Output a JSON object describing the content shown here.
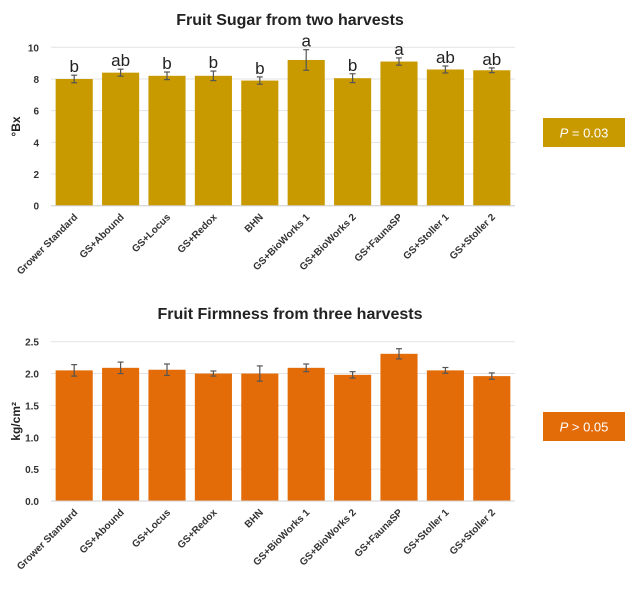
{
  "chart_data": [
    {
      "type": "bar",
      "title": "Fruit Sugar from two harvests",
      "xlabel": "",
      "ylabel": "°Bx",
      "ylim": [
        0,
        10
      ],
      "yticks": [
        0,
        2,
        4,
        6,
        8,
        10
      ],
      "grid": true,
      "color": "#c99a00",
      "categories": [
        "Grower Standard",
        "GS+Abound",
        "GS+Locus",
        "GS+Redox",
        "BHN",
        "GS+BioWorks 1",
        "GS+BioWorks 2",
        "GS+FaunaSP",
        "GS+Stoller 1",
        "GS+Stoller 2"
      ],
      "values": [
        8.0,
        8.4,
        8.2,
        8.2,
        7.9,
        9.2,
        8.05,
        9.1,
        8.6,
        8.55
      ],
      "errors": [
        0.24,
        0.22,
        0.24,
        0.3,
        0.23,
        0.65,
        0.28,
        0.23,
        0.22,
        0.15
      ],
      "data_labels": [
        "b",
        "ab",
        "b",
        "b",
        "b",
        "a",
        "b",
        "a",
        "ab",
        "ab"
      ],
      "annotation": {
        "p_label": "P",
        "p_text": " = 0.03"
      }
    },
    {
      "type": "bar",
      "title": "Fruit Firmness from three harvests",
      "xlabel": "",
      "ylabel": "kg/cm²",
      "ylim": [
        0,
        2.5
      ],
      "yticks": [
        "0.0",
        "0.5",
        "1.0",
        "1.5",
        "2.0",
        "2.5"
      ],
      "grid": true,
      "color": "#e36c09",
      "categories": [
        "Grower Standard",
        "GS+Abound",
        "GS+Locus",
        "GS+Redox",
        "BHN",
        "GS+BioWorks 1",
        "GS+BioWorks 2",
        "GS+FaunaSP",
        "GS+Stoller 1",
        "GS+Stoller 2"
      ],
      "values": [
        2.05,
        2.09,
        2.06,
        2.0,
        2.0,
        2.09,
        1.98,
        2.31,
        2.05,
        1.96
      ],
      "errors": [
        0.09,
        0.09,
        0.09,
        0.04,
        0.12,
        0.06,
        0.05,
        0.08,
        0.045,
        0.05
      ],
      "annotation": {
        "p_label": "P",
        "p_text": " > 0.05"
      }
    }
  ]
}
